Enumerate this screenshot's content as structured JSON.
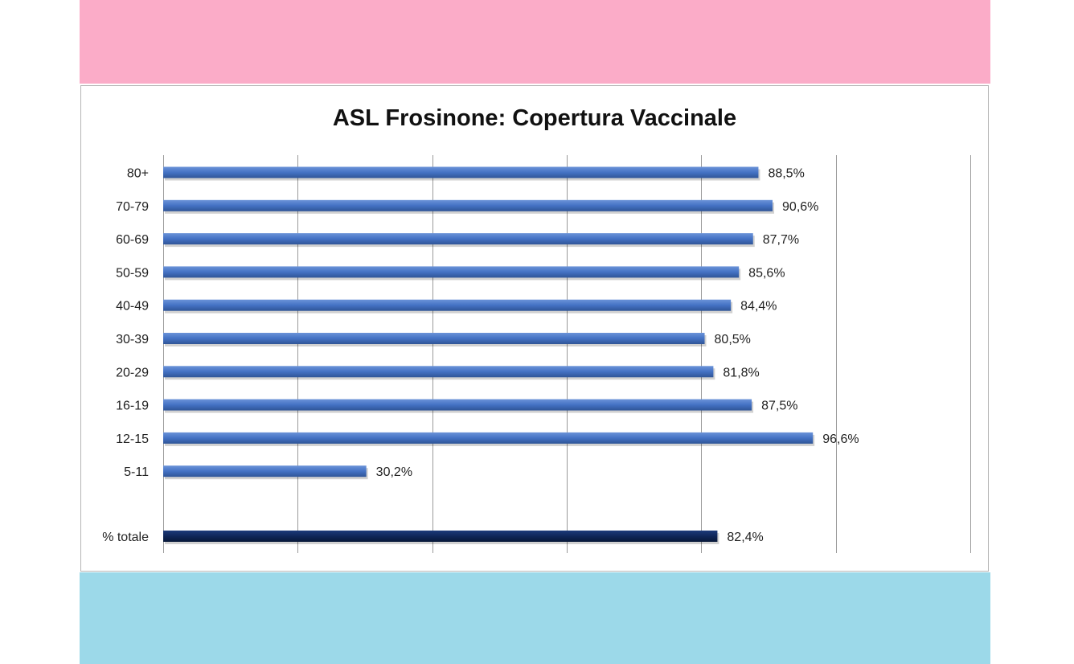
{
  "colors": {
    "top_band": "#fbacc8",
    "bottom_band": "#9cd9e9",
    "bar_blue": "#4472c4",
    "bar_total": "#0f2659",
    "grid": "#9a9a9a"
  },
  "chart_data": {
    "type": "bar",
    "orientation": "horizontal",
    "title": "ASL Frosinone: Copertura Vaccinale",
    "xlabel": "",
    "ylabel": "",
    "xlim": [
      0,
      120
    ],
    "grid": true,
    "legend": "none",
    "categories": [
      "80+",
      "70-79",
      "60-69",
      "50-59",
      "40-49",
      "30-39",
      "20-29",
      "16-19",
      "12-15",
      "5-11",
      "% totale"
    ],
    "values": [
      88.5,
      90.6,
      87.7,
      85.6,
      84.4,
      80.5,
      81.8,
      87.5,
      96.6,
      30.2,
      82.4
    ],
    "value_labels": [
      "88,5%",
      "90,6%",
      "87,7%",
      "85,6%",
      "84,4%",
      "80,5%",
      "81,8%",
      "87,5%",
      "96,6%",
      "30,2%",
      "82,4%"
    ]
  }
}
